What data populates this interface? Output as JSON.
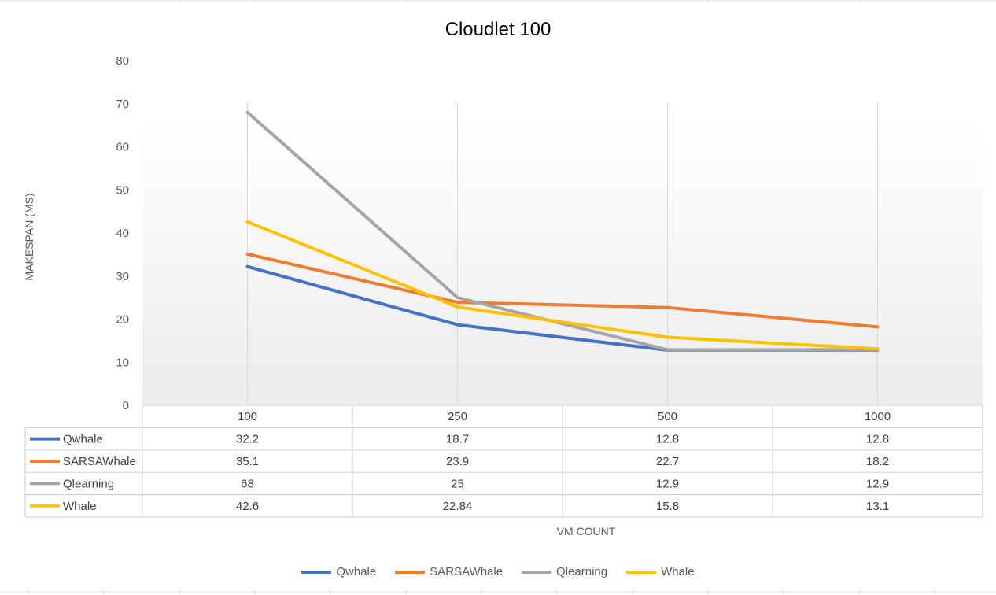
{
  "chart_data": {
    "type": "line",
    "title": "Cloudlet 100",
    "xlabel": "VM COUNT",
    "ylabel": "MAKESPAN (MS)",
    "categories": [
      "100",
      "250",
      "500",
      "1000"
    ],
    "ylim": [
      0,
      80
    ],
    "yticks": [
      0,
      10,
      20,
      30,
      40,
      50,
      60,
      70,
      80
    ],
    "grid": "vertical category lines",
    "legend": "bottom",
    "data_table": true,
    "series": [
      {
        "name": "Qwhale",
        "color": "#4472C4",
        "values": [
          32.2,
          18.7,
          12.8,
          12.8
        ],
        "labels": [
          "32.2",
          "18.7",
          "12.8",
          "12.8"
        ]
      },
      {
        "name": "SARSAWhale",
        "color": "#ED7D31",
        "values": [
          35.1,
          23.9,
          22.7,
          18.2
        ],
        "labels": [
          "35.1",
          "23.9",
          "22.7",
          "18.2"
        ]
      },
      {
        "name": "Qlearning",
        "color": "#A5A5A5",
        "values": [
          68,
          25,
          12.9,
          12.9
        ],
        "labels": [
          "68",
          "25",
          "12.9",
          "12.9"
        ]
      },
      {
        "name": "Whale",
        "color": "#FFC000",
        "values": [
          42.6,
          22.84,
          15.8,
          13.1
        ],
        "labels": [
          "42.6",
          "22.84",
          "15.8",
          "13.1"
        ]
      }
    ]
  }
}
